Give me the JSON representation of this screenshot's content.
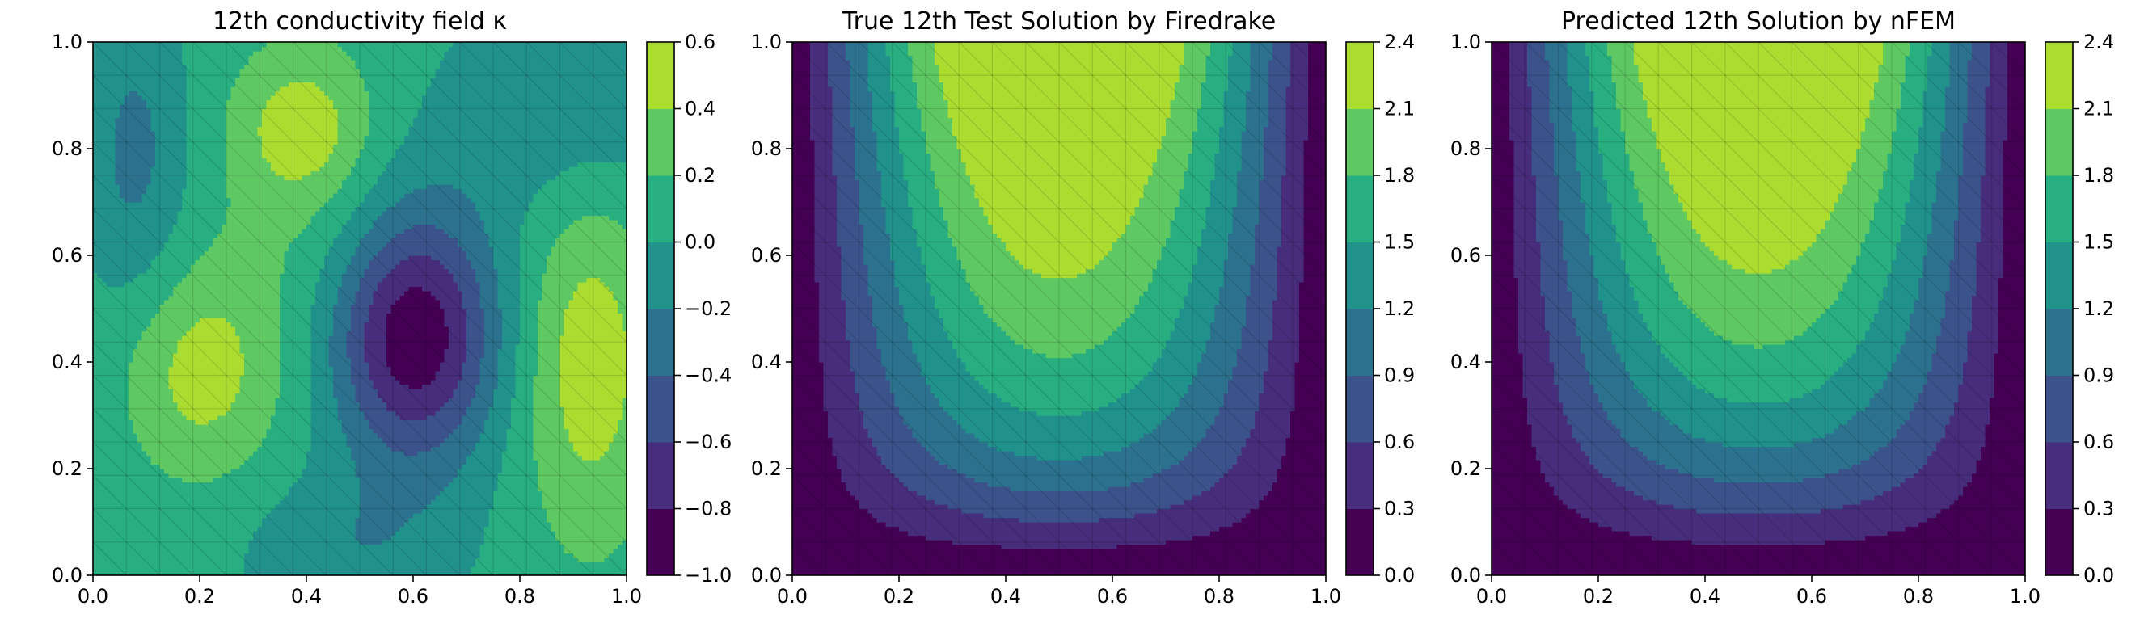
{
  "chart_data": [
    {
      "type": "heatmap",
      "subtype": "filled-contour",
      "title": "12th conductivity field κ",
      "xlim": [
        0.0,
        1.0
      ],
      "ylim": [
        0.0,
        1.0
      ],
      "xticks": [
        "0.0",
        "0.2",
        "0.4",
        "0.6",
        "0.8",
        "1.0"
      ],
      "yticks": [
        "0.0",
        "0.2",
        "0.4",
        "0.6",
        "0.8",
        "1.0"
      ],
      "colorbar": {
        "levels": [
          -1.0,
          -0.8,
          -0.6,
          -0.4,
          -0.2,
          0.0,
          0.2,
          0.4,
          0.6
        ],
        "ticks": [
          "−1.0",
          "−0.8",
          "−0.6",
          "−0.4",
          "−0.2",
          "0.0",
          "0.2",
          "0.4",
          "0.6"
        ]
      },
      "colormap": "viridis",
      "mesh_overlay": true
    },
    {
      "type": "heatmap",
      "subtype": "filled-contour",
      "title": "True 12th Test Solution by Firedrake",
      "xlim": [
        0.0,
        1.0
      ],
      "ylim": [
        0.0,
        1.0
      ],
      "xticks": [
        "0.0",
        "0.2",
        "0.4",
        "0.6",
        "0.8",
        "1.0"
      ],
      "yticks": [
        "0.0",
        "0.2",
        "0.4",
        "0.6",
        "0.8",
        "1.0"
      ],
      "colorbar": {
        "levels": [
          0.0,
          0.3,
          0.6,
          0.9,
          1.2,
          1.5,
          1.8,
          2.1,
          2.4
        ],
        "ticks": [
          "0.0",
          "0.3",
          "0.6",
          "0.9",
          "1.2",
          "1.5",
          "1.8",
          "2.1",
          "2.4"
        ]
      },
      "colormap": "viridis",
      "mesh_overlay": true
    },
    {
      "type": "heatmap",
      "subtype": "filled-contour",
      "title": "Predicted 12th Solution by nFEM",
      "xlim": [
        0.0,
        1.0
      ],
      "ylim": [
        0.0,
        1.0
      ],
      "xticks": [
        "0.0",
        "0.2",
        "0.4",
        "0.6",
        "0.8",
        "1.0"
      ],
      "yticks": [
        "0.0",
        "0.2",
        "0.4",
        "0.6",
        "0.8",
        "1.0"
      ],
      "colorbar": {
        "levels": [
          0.0,
          0.3,
          0.6,
          0.9,
          1.2,
          1.5,
          1.8,
          2.1,
          2.4
        ],
        "ticks": [
          "0.0",
          "0.3",
          "0.6",
          "0.9",
          "1.2",
          "1.5",
          "1.8",
          "2.1",
          "2.4"
        ]
      },
      "colormap": "viridis",
      "mesh_overlay": true
    }
  ],
  "colors": [
    "#440154",
    "#472d7b",
    "#3b528b",
    "#2c728e",
    "#21918c",
    "#28ae80",
    "#5ec962",
    "#addc30",
    "#fde725"
  ]
}
